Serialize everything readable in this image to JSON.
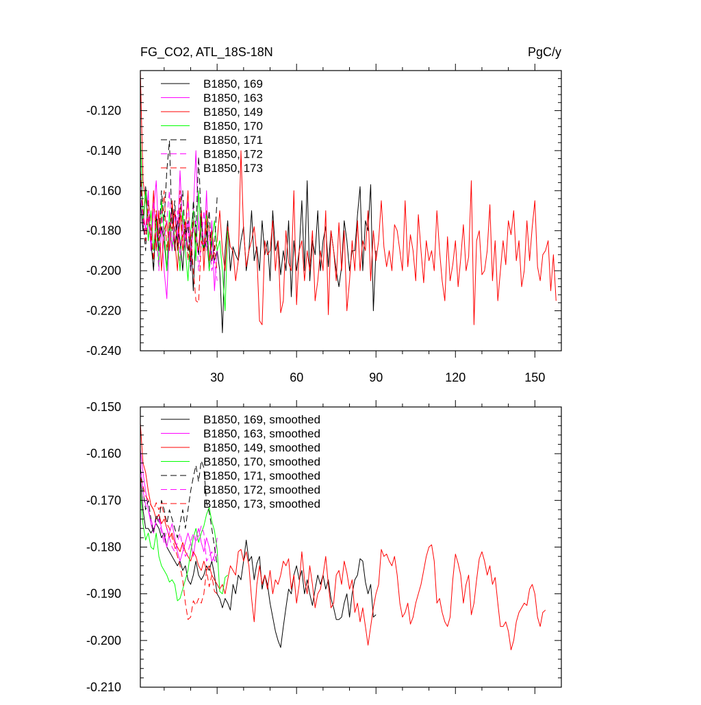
{
  "chart_data": [
    {
      "type": "line",
      "title": "FG_CO2, ATL_18S-18N",
      "units": "PgC/y",
      "xlim": [
        1,
        160
      ],
      "ylim": [
        -0.24,
        -0.1
      ],
      "xticks": [
        30,
        60,
        90,
        120,
        150
      ],
      "yticks": [
        -0.12,
        -0.14,
        -0.16,
        -0.18,
        -0.2,
        -0.22,
        -0.24
      ],
      "ytick_labels": [
        "-0.120",
        "-0.140",
        "-0.160",
        "-0.180",
        "-0.200",
        "-0.220",
        "-0.240"
      ],
      "xtick_labels": [
        "30",
        "60",
        "90",
        "120",
        "150"
      ],
      "legend_location": "top-left",
      "series": [
        {
          "name": "B1850, 169",
          "color": "#000000",
          "dash": "solid",
          "values": [
            -0.165,
            -0.18,
            -0.158,
            -0.175,
            -0.185,
            -0.2,
            -0.172,
            -0.19,
            -0.178,
            -0.185,
            -0.2,
            -0.18,
            -0.168,
            -0.19,
            -0.175,
            -0.185,
            -0.2,
            -0.178,
            -0.19,
            -0.182,
            -0.21,
            -0.18,
            -0.192,
            -0.175,
            -0.19,
            -0.18,
            -0.2,
            -0.185,
            -0.195,
            -0.19,
            -0.2,
            -0.231,
            -0.19,
            -0.175,
            -0.2,
            -0.188,
            -0.192,
            -0.195,
            -0.185,
            -0.178,
            -0.2,
            -0.19,
            -0.17,
            -0.195,
            -0.188,
            -0.2,
            -0.175,
            -0.192,
            -0.185,
            -0.205,
            -0.17,
            -0.19,
            -0.185,
            -0.202,
            -0.19,
            -0.2,
            -0.175,
            -0.213,
            -0.185,
            -0.2,
            -0.19,
            -0.165,
            -0.2,
            -0.155,
            -0.205,
            -0.185,
            -0.192,
            -0.17,
            -0.2,
            -0.185,
            -0.178,
            -0.198,
            -0.18,
            -0.19,
            -0.2,
            -0.208,
            -0.198,
            -0.175,
            -0.185,
            -0.2,
            -0.19,
            -0.19,
            -0.172,
            -0.158,
            -0.2,
            -0.175,
            -0.18,
            -0.157,
            -0.22,
            -0.19
          ]
        },
        {
          "name": "B1850, 163",
          "color": "#ff00ff",
          "dash": "solid",
          "values": [
            -0.15,
            -0.17,
            -0.18,
            -0.16,
            -0.19,
            -0.17,
            -0.155,
            -0.185,
            -0.18,
            -0.2,
            -0.214,
            -0.18,
            -0.19,
            -0.17,
            -0.185,
            -0.15,
            -0.18,
            -0.19,
            -0.175,
            -0.2,
            -0.17,
            -0.14,
            -0.18,
            -0.17,
            -0.19,
            -0.16,
            -0.2,
            -0.175,
            -0.21,
            -0.19
          ]
        },
        {
          "name": "B1850, 149",
          "color": "#ff0000",
          "dash": "solid",
          "values": [
            -0.1,
            -0.155,
            -0.165,
            -0.175,
            -0.185,
            -0.16,
            -0.19,
            -0.17,
            -0.2,
            -0.18,
            -0.175,
            -0.19,
            -0.165,
            -0.185,
            -0.2,
            -0.17,
            -0.19,
            -0.18,
            -0.16,
            -0.195,
            -0.175,
            -0.185,
            -0.19,
            -0.17,
            -0.2,
            -0.175,
            -0.195,
            -0.18,
            -0.19,
            -0.185,
            -0.17,
            -0.19,
            -0.2,
            -0.178,
            -0.188,
            -0.19,
            -0.205,
            -0.195,
            -0.14,
            -0.18,
            -0.198,
            -0.19,
            -0.185,
            -0.178,
            -0.192,
            -0.225,
            -0.227,
            -0.185,
            -0.192,
            -0.19,
            -0.175,
            -0.2,
            -0.185,
            -0.221,
            -0.215,
            -0.18,
            -0.196,
            -0.2,
            -0.16,
            -0.217,
            -0.19,
            -0.185,
            -0.205,
            -0.19,
            -0.2,
            -0.18,
            -0.215,
            -0.205,
            -0.19,
            -0.2,
            -0.17,
            -0.222,
            -0.18,
            -0.19,
            -0.205,
            -0.176,
            -0.2,
            -0.18,
            -0.22,
            -0.205,
            -0.185,
            -0.2,
            -0.175,
            -0.2,
            -0.185,
            -0.19,
            -0.17,
            -0.205,
            -0.18,
            -0.195,
            -0.185,
            -0.165,
            -0.188,
            -0.198,
            -0.19,
            -0.2,
            -0.177,
            -0.18,
            -0.19,
            -0.2,
            -0.165,
            -0.198,
            -0.182,
            -0.19,
            -0.205,
            -0.172,
            -0.19,
            -0.206,
            -0.185,
            -0.195,
            -0.19,
            -0.2,
            -0.17,
            -0.19,
            -0.205,
            -0.215,
            -0.183,
            -0.205,
            -0.197,
            -0.185,
            -0.208,
            -0.194,
            -0.177,
            -0.2,
            -0.193,
            -0.155,
            -0.227,
            -0.185,
            -0.18,
            -0.202,
            -0.2,
            -0.19,
            -0.167,
            -0.205,
            -0.185,
            -0.215,
            -0.2,
            -0.185,
            -0.197,
            -0.175,
            -0.182,
            -0.17,
            -0.195,
            -0.185,
            -0.208,
            -0.2,
            -0.175,
            -0.195,
            -0.178,
            -0.165,
            -0.198,
            -0.205,
            -0.192,
            -0.19,
            -0.185,
            -0.21,
            -0.192,
            -0.215
          ]
        },
        {
          "name": "B1850, 170",
          "color": "#00ff00",
          "dash": "solid",
          "values": [
            -0.13,
            -0.175,
            -0.16,
            -0.185,
            -0.17,
            -0.19,
            -0.175,
            -0.198,
            -0.165,
            -0.18,
            -0.2,
            -0.17,
            -0.19,
            -0.178,
            -0.185,
            -0.2,
            -0.17,
            -0.19,
            -0.205,
            -0.18,
            -0.17,
            -0.195,
            -0.16,
            -0.185,
            -0.19,
            -0.17,
            -0.2,
            -0.185,
            -0.175,
            -0.19,
            -0.185,
            -0.2,
            -0.22,
            -0.18
          ]
        },
        {
          "name": "B1850, 171",
          "color": "#000000",
          "dash": "dashed",
          "values": [
            -0.155,
            -0.175,
            -0.19,
            -0.165,
            -0.18,
            -0.2,
            -0.17,
            -0.185,
            -0.16,
            -0.175,
            -0.15,
            -0.135,
            -0.18,
            -0.165,
            -0.19,
            -0.17,
            -0.16,
            -0.185,
            -0.175,
            -0.2,
            -0.165,
            -0.18,
            -0.143,
            -0.175,
            -0.19,
            -0.185,
            -0.17,
            -0.195,
            -0.188,
            -0.163
          ]
        },
        {
          "name": "B1850, 172",
          "color": "#ff00ff",
          "dash": "dashed",
          "values": [
            -0.16,
            -0.175,
            -0.185,
            -0.17,
            -0.19,
            -0.165,
            -0.18,
            -0.2,
            -0.17,
            -0.185,
            -0.175,
            -0.16,
            -0.19,
            -0.18,
            -0.17,
            -0.195,
            -0.175,
            -0.185,
            -0.165,
            -0.19,
            -0.18,
            -0.175,
            -0.2,
            -0.185,
            -0.17,
            -0.19,
            -0.18,
            -0.2,
            -0.195,
            -0.205
          ]
        },
        {
          "name": "B1850, 173",
          "color": "#ff0000",
          "dash": "dashed",
          "values": [
            -0.15,
            -0.17,
            -0.185,
            -0.165,
            -0.18,
            -0.195,
            -0.17,
            -0.185,
            -0.175,
            -0.16,
            -0.19,
            -0.175,
            -0.18,
            -0.17,
            -0.19,
            -0.16,
            -0.185,
            -0.175,
            -0.195,
            -0.18,
            -0.2,
            -0.215,
            -0.216,
            -0.185,
            -0.19,
            -0.17,
            -0.18,
            -0.195,
            -0.19,
            -0.2
          ]
        }
      ]
    },
    {
      "type": "line",
      "xlim": [
        1,
        160
      ],
      "ylim": [
        -0.21,
        -0.15
      ],
      "xticks": [
        30,
        60,
        90,
        120,
        150
      ],
      "yticks": [
        -0.15,
        -0.16,
        -0.17,
        -0.18,
        -0.19,
        -0.2,
        -0.21
      ],
      "ytick_labels": [
        "-0.150",
        "-0.160",
        "-0.170",
        "-0.180",
        "-0.190",
        "-0.200",
        "-0.210"
      ],
      "legend_location": "top-left",
      "series": [
        {
          "name": "B1850, 169, smoothed",
          "color": "#000000",
          "dash": "solid",
          "values": [
            -0.165,
            -0.172,
            -0.176,
            -0.176,
            -0.177,
            -0.176,
            -0.175,
            -0.176,
            -0.178,
            -0.177,
            -0.18,
            -0.181,
            -0.182,
            -0.183,
            -0.184,
            -0.183,
            -0.185,
            -0.184,
            -0.187,
            -0.188,
            -0.186,
            -0.183,
            -0.186,
            -0.187,
            -0.186,
            -0.184,
            -0.185,
            -0.183,
            -0.186,
            -0.19,
            -0.191,
            -0.193,
            -0.191,
            -0.192,
            -0.1935,
            -0.188,
            -0.19,
            -0.186,
            -0.187,
            -0.183,
            -0.1785,
            -0.183,
            -0.182,
            -0.187,
            -0.1835,
            -0.182,
            -0.189,
            -0.186,
            -0.188,
            -0.192,
            -0.195,
            -0.198,
            -0.2,
            -0.2015,
            -0.197,
            -0.193,
            -0.189,
            -0.19,
            -0.186,
            -0.184,
            -0.187,
            -0.185,
            -0.19,
            -0.187,
            -0.19,
            -0.1925,
            -0.189,
            -0.186,
            -0.188,
            -0.186,
            -0.189,
            -0.187,
            -0.191,
            -0.193,
            -0.1955,
            -0.1955,
            -0.195,
            -0.192,
            -0.19,
            -0.195,
            -0.19,
            -0.187,
            -0.186,
            -0.1825,
            -0.183,
            -0.1875,
            -0.19,
            -0.188,
            -0.195,
            -0.1945
          ]
        },
        {
          "name": "B1850, 163, smoothed",
          "color": "#ff00ff",
          "dash": "solid",
          "values": [
            -0.159,
            -0.164,
            -0.168,
            -0.172,
            -0.175,
            -0.177,
            -0.174,
            -0.173,
            -0.176,
            -0.178,
            -0.18,
            -0.177,
            -0.175,
            -0.178,
            -0.181,
            -0.183,
            -0.181,
            -0.179,
            -0.177,
            -0.179,
            -0.182,
            -0.178,
            -0.176,
            -0.179,
            -0.181,
            -0.178,
            -0.18,
            -0.183,
            -0.182,
            -0.178
          ]
        },
        {
          "name": "B1850, 149, smoothed",
          "color": "#ff0000",
          "dash": "solid",
          "values": [
            -0.1535,
            -0.162,
            -0.164,
            -0.168,
            -0.171,
            -0.172,
            -0.174,
            -0.173,
            -0.175,
            -0.174,
            -0.176,
            -0.178,
            -0.177,
            -0.179,
            -0.18,
            -0.181,
            -0.179,
            -0.181,
            -0.182,
            -0.183,
            -0.181,
            -0.182,
            -0.184,
            -0.185,
            -0.183,
            -0.185,
            -0.184,
            -0.186,
            -0.187,
            -0.188,
            -0.189,
            -0.188,
            -0.19,
            -0.187,
            -0.184,
            -0.185,
            -0.186,
            -0.181,
            -0.1805,
            -0.183,
            -0.181,
            -0.184,
            -0.191,
            -0.196,
            -0.188,
            -0.184,
            -0.188,
            -0.186,
            -0.189,
            -0.185,
            -0.19,
            -0.187,
            -0.188,
            -0.186,
            -0.183,
            -0.184,
            -0.1825,
            -0.189,
            -0.186,
            -0.192,
            -0.188,
            -0.181,
            -0.187,
            -0.19,
            -0.184,
            -0.188,
            -0.193,
            -0.19,
            -0.189,
            -0.186,
            -0.182,
            -0.188,
            -0.193,
            -0.192,
            -0.186,
            -0.185,
            -0.188,
            -0.183,
            -0.1855,
            -0.189,
            -0.187,
            -0.194,
            -0.192,
            -0.196,
            -0.193,
            -0.197,
            -0.201,
            -0.197,
            -0.193,
            -0.19,
            -0.188,
            -0.1805,
            -0.182,
            -0.1815,
            -0.183,
            -0.184,
            -0.182,
            -0.186,
            -0.192,
            -0.195,
            -0.194,
            -0.192,
            -0.1965,
            -0.195,
            -0.192,
            -0.19,
            -0.188,
            -0.185,
            -0.182,
            -0.18,
            -0.1795,
            -0.183,
            -0.192,
            -0.191,
            -0.194,
            -0.196,
            -0.197,
            -0.195,
            -0.187,
            -0.1815,
            -0.1835,
            -0.186,
            -0.192,
            -0.188,
            -0.186,
            -0.1945,
            -0.192,
            -0.187,
            -0.1825,
            -0.181,
            -0.183,
            -0.186,
            -0.184,
            -0.188,
            -0.1865,
            -0.192,
            -0.197,
            -0.197,
            -0.196,
            -0.198,
            -0.202,
            -0.2,
            -0.196,
            -0.194,
            -0.193,
            -0.192,
            -0.1925,
            -0.189,
            -0.188,
            -0.19,
            -0.195,
            -0.197,
            -0.194,
            -0.1935
          ]
        },
        {
          "name": "B1850, 170, smoothed",
          "color": "#00ff00",
          "dash": "solid",
          "values": [
            -0.168,
            -0.175,
            -0.1785,
            -0.177,
            -0.18,
            -0.1805,
            -0.177,
            -0.182,
            -0.184,
            -0.185,
            -0.186,
            -0.1875,
            -0.187,
            -0.188,
            -0.1915,
            -0.191,
            -0.189,
            -0.187,
            -0.185,
            -0.181,
            -0.178,
            -0.176,
            -0.179,
            -0.177,
            -0.1755,
            -0.173,
            -0.1715,
            -0.1745,
            -0.1765,
            -0.1805,
            -0.1895,
            -0.19,
            -0.1865,
            -0.186
          ]
        },
        {
          "name": "B1850, 171, smoothed",
          "color": "#000000",
          "dash": "dashed",
          "values": [
            -0.163,
            -0.168,
            -0.172,
            -0.17,
            -0.174,
            -0.177,
            -0.173,
            -0.175,
            -0.17,
            -0.172,
            -0.175,
            -0.172,
            -0.174,
            -0.176,
            -0.178,
            -0.175,
            -0.172,
            -0.176,
            -0.172,
            -0.168,
            -0.165,
            -0.1625,
            -0.166,
            -0.1615,
            -0.163,
            -0.1705,
            -0.1725,
            -0.176,
            -0.18,
            -0.184
          ]
        },
        {
          "name": "B1850, 172, smoothed",
          "color": "#ff00ff",
          "dash": "dashed",
          "values": [
            -0.162,
            -0.168,
            -0.171,
            -0.172,
            -0.174,
            -0.176,
            -0.175,
            -0.174,
            -0.177,
            -0.179,
            -0.176,
            -0.178,
            -0.18,
            -0.181,
            -0.179,
            -0.177,
            -0.18,
            -0.182,
            -0.181,
            -0.179,
            -0.177,
            -0.179,
            -0.1775,
            -0.1755,
            -0.177,
            -0.183,
            -0.182,
            -0.181,
            -0.183,
            -0.1815
          ]
        },
        {
          "name": "B1850, 173, smoothed",
          "color": "#ff0000",
          "dash": "dashed",
          "values": [
            -0.165,
            -0.167,
            -0.169,
            -0.17,
            -0.171,
            -0.172,
            -0.1705,
            -0.172,
            -0.171,
            -0.173,
            -0.175,
            -0.176,
            -0.178,
            -0.18,
            -0.182,
            -0.184,
            -0.187,
            -0.192,
            -0.1955,
            -0.195,
            -0.1915,
            -0.1925,
            -0.191,
            -0.192,
            -0.19,
            -0.185,
            -0.1885,
            -0.186,
            -0.1895,
            -0.19
          ]
        }
      ]
    }
  ]
}
